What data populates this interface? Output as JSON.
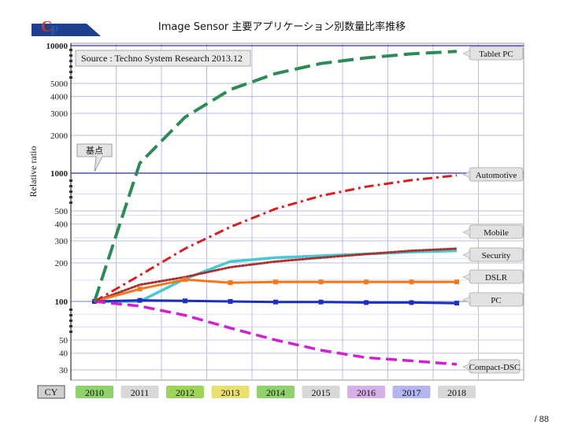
{
  "page": {
    "page_number": "/ 88"
  },
  "logo": {
    "letter_1": "C",
    "letter_2": "P"
  },
  "chart_data": {
    "type": "line",
    "title": "Image Sensor 主要アプリケーション別数量比率推移",
    "ylabel": "Relative ratio",
    "y_scale": "log",
    "ylim": [
      30,
      10000
    ],
    "y_tick_labels": [
      "10000",
      "5000",
      "4000",
      "3000",
      "2000",
      "1000",
      "500",
      "400",
      "300",
      "200",
      "100",
      "50",
      "40",
      "30"
    ],
    "x_label_prefix": "CY",
    "x": [
      "2010",
      "2011",
      "2012",
      "2013",
      "2014",
      "2015",
      "2016",
      "2017",
      "2018"
    ],
    "source": "Source : Techno System Research 2013.12",
    "annotation": "基点",
    "series": [
      {
        "name": "Tablet PC",
        "color": "#2e8b57",
        "style": "long-dash",
        "values": [
          100,
          1200,
          2800,
          4500,
          6000,
          7200,
          8000,
          8600,
          9000
        ]
      },
      {
        "name": "Automotive",
        "color": "#d62020",
        "style": "dash-dot",
        "values": [
          100,
          160,
          260,
          380,
          520,
          660,
          780,
          880,
          960
        ]
      },
      {
        "name": "Mobile",
        "color": "#a83232",
        "style": "dotted",
        "values": [
          100,
          135,
          155,
          185,
          205,
          220,
          235,
          250,
          260
        ]
      },
      {
        "name": "Security",
        "color": "#48c8d0",
        "style": "solid",
        "values": [
          100,
          100,
          150,
          205,
          220,
          228,
          236,
          244,
          250
        ]
      },
      {
        "name": "DSLR",
        "color": "#f07820",
        "style": "solid-markers",
        "values": [
          100,
          125,
          148,
          140,
          142,
          142,
          142,
          142,
          142
        ]
      },
      {
        "name": "PC",
        "color": "#1a2fc4",
        "style": "solid-markers",
        "values": [
          100,
          102,
          101,
          100,
          99,
          99,
          98,
          98,
          97
        ]
      },
      {
        "name": "Compact-DSC",
        "color": "#d020d0",
        "style": "dashed",
        "values": [
          100,
          92,
          78,
          62,
          50,
          42,
          37,
          35,
          33
        ]
      }
    ]
  }
}
